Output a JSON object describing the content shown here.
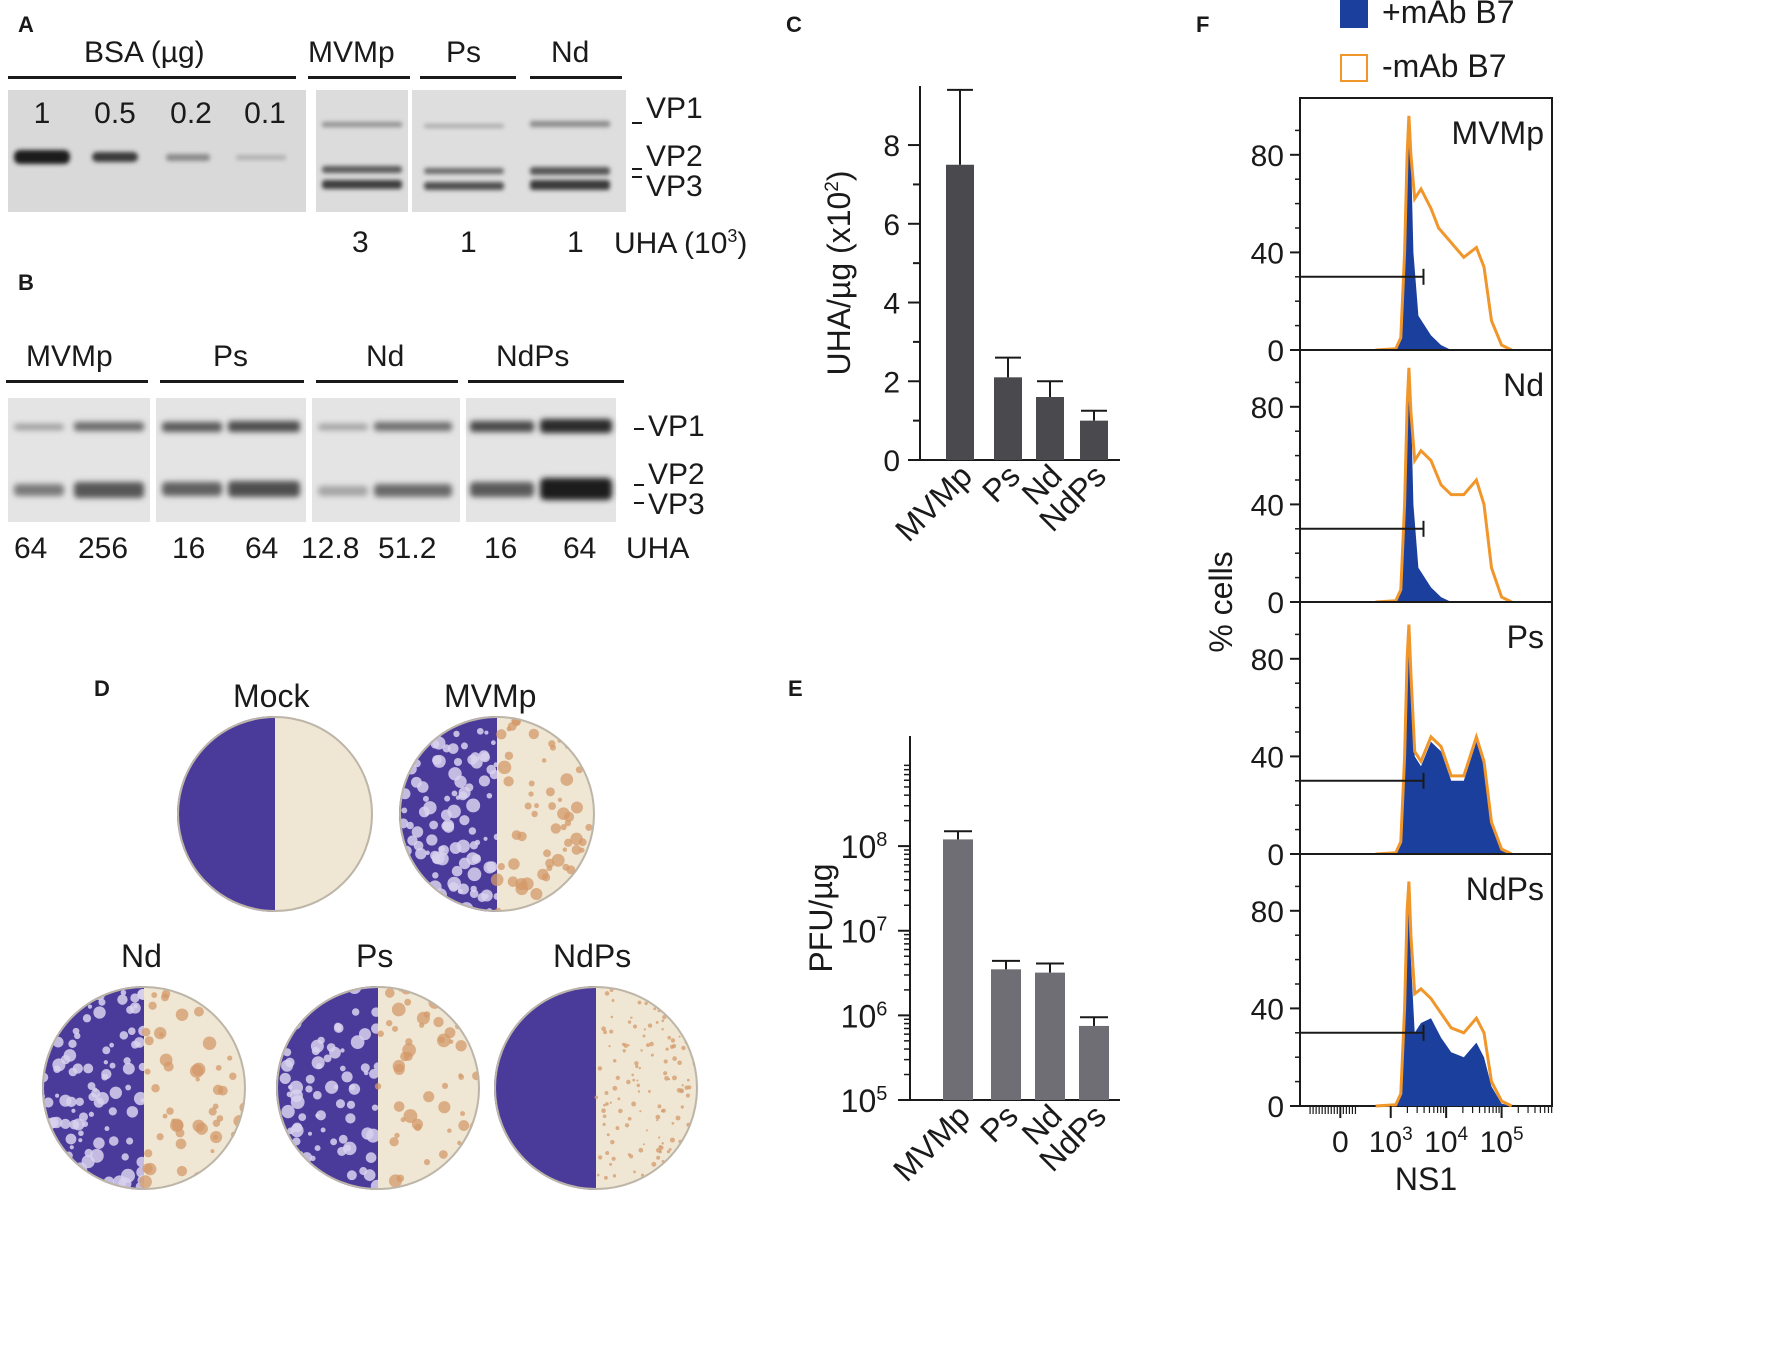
{
  "panels": {
    "A": {
      "letter": "A",
      "bsa_header": "BSA (µg)",
      "bsa_amounts": [
        "1",
        "0.5",
        "0.2",
        "0.1"
      ],
      "virus_headers": [
        "MVMp",
        "Ps",
        "Nd"
      ],
      "band_labels": [
        "VP1",
        "VP2",
        "VP3"
      ],
      "uha_values": [
        "3",
        "1",
        "1"
      ],
      "uha_unit": "UHA (10",
      "uha_unit_exp": "3",
      "uha_unit_close": ")"
    },
    "B": {
      "letter": "B",
      "virus_headers": [
        "MVMp",
        "Ps",
        "Nd",
        "NdPs"
      ],
      "band_labels": [
        "VP1",
        "VP2",
        "VP3"
      ],
      "uha_values": [
        "64",
        "256",
        "16",
        "64",
        "12.8",
        "51.2",
        "16",
        "64"
      ],
      "uha_unit": "UHA"
    },
    "C": {
      "letter": "C"
    },
    "D": {
      "letter": "D",
      "plate_labels": [
        "Mock",
        "MVMp",
        "Nd",
        "Ps",
        "NdPs"
      ],
      "colors": {
        "stain": "#4a3a9a",
        "plaque": "#d49a6a",
        "plate_bg": "#efe6d4"
      }
    },
    "E": {
      "letter": "E"
    },
    "F": {
      "letter": "F",
      "legend": [
        "+mAb B7",
        "-mAb B7"
      ],
      "ylabel": "% cells",
      "xlabel": "NS1",
      "x_ticks": [
        "0",
        "10",
        "10",
        "10"
      ],
      "x_tick_exps": [
        "",
        "3",
        "4",
        "5"
      ],
      "y_ticks": [
        "0",
        "40",
        "80"
      ],
      "subpanels": [
        "MVMp",
        "Nd",
        "Ps",
        "NdPs"
      ],
      "colors": {
        "fill": "#1a3f9c",
        "outline": "#f0962a"
      }
    }
  },
  "chart_data": [
    {
      "type": "bar",
      "panel": "C",
      "categories": [
        "MVMp",
        "Ps",
        "Nd",
        "NdPs"
      ],
      "values": [
        7.5,
        2.1,
        1.6,
        1.0
      ],
      "errors": [
        1.9,
        0.5,
        0.4,
        0.25
      ],
      "ylabel": "UHA/µg (x10",
      "ylabel_exp": "2",
      "ylabel_close": ")",
      "ylim": [
        0,
        9.5
      ],
      "y_ticks": [
        "0",
        "2",
        "4",
        "6",
        "8"
      ],
      "color": "#4a4a4e"
    },
    {
      "type": "bar",
      "panel": "E",
      "scale": "log",
      "categories": [
        "MVMp",
        "Ps",
        "Nd",
        "NdPs"
      ],
      "values": [
        120000000,
        3500000,
        3200000,
        750000
      ],
      "error_tops": [
        150000000,
        4400000,
        4100000,
        950000
      ],
      "ylabel": "PFU/µg",
      "ylim": [
        100000,
        2000000000
      ],
      "y_ticks": [
        "10",
        "10",
        "10",
        "10"
      ],
      "y_tick_exps": [
        "5",
        "6",
        "7",
        "8"
      ],
      "color": "#6e6e74"
    }
  ]
}
